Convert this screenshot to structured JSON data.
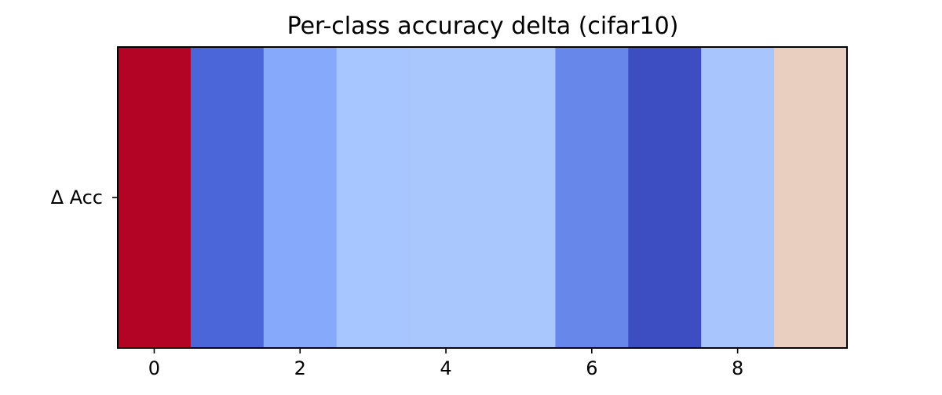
{
  "chart_data": {
    "type": "heatmap",
    "title": "Per-class accuracy delta (cifar10)",
    "xlabel": "",
    "ylabel": "",
    "row_labels": [
      "Δ Acc"
    ],
    "columns": [
      0,
      1,
      2,
      3,
      4,
      5,
      6,
      7,
      8,
      9
    ],
    "xlim": [
      -0.5,
      9.5
    ],
    "x_ticks": [
      0,
      2,
      4,
      6,
      8
    ],
    "x_tick_labels": [
      "0",
      "2",
      "4",
      "6",
      "8"
    ],
    "colormap": "coolwarm",
    "cell_colors": [
      "#b40426",
      "#4a66d8",
      "#86a9fb",
      "#a7c5fe",
      "#aac7fd",
      "#aac7fd",
      "#6788ea",
      "#3c4ec2",
      "#a8c5fe",
      "#e8cfc0"
    ],
    "relative_values": [
      1.0,
      0.12,
      0.3,
      0.38,
      0.39,
      0.39,
      0.2,
      0.03,
      0.38,
      0.6
    ],
    "grid": false,
    "legend": "none"
  }
}
